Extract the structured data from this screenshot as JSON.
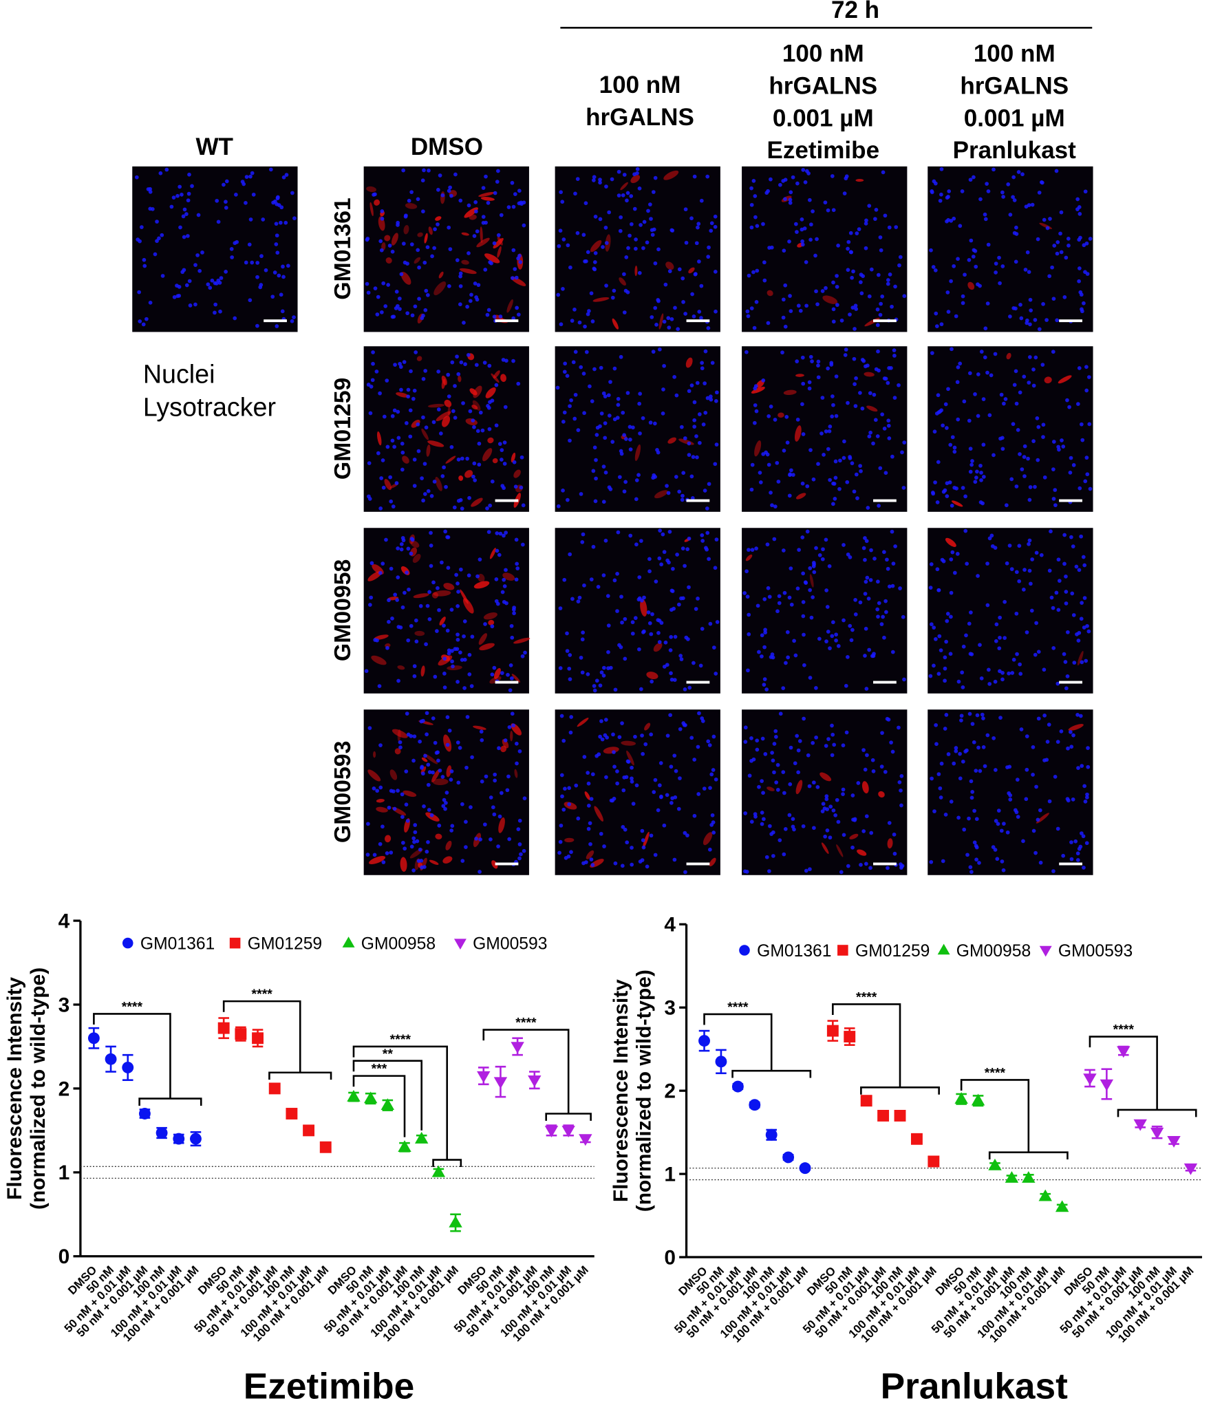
{
  "figure": {
    "time_label": "72 h",
    "column_headers": [
      [
        "WT"
      ],
      [
        "DMSO"
      ],
      [
        "100 nM",
        "hrGALNS"
      ],
      [
        "100 nM",
        "hrGALNS",
        "0.001 µM",
        "Ezetimibe"
      ],
      [
        "100 nM",
        "hrGALNS",
        "0.001 µM",
        "Pranlukast"
      ]
    ],
    "row_labels": [
      "GM01361",
      "GM01259",
      "GM00958",
      "GM00593"
    ],
    "legend": [
      {
        "label": "Nuclei",
        "color": "#1a1aff"
      },
      {
        "label": "Lysotracker",
        "color": "#e81010"
      }
    ]
  },
  "chart_data": [
    {
      "type": "dot",
      "title": "Ezetimibe",
      "ylabel": [
        "Fluorescence Intensity",
        "(normalized to wild-type)"
      ],
      "categories": [
        "DMSO",
        "50 nM",
        "50 nM + 0.01 µM",
        "50 nM + 0.001 µM",
        "100 nM",
        "100 nM + 0.01 µM",
        "100 nM + 0.001 µM",
        "DMSO",
        "50 nM",
        "50 nM + 0.01 µM",
        "50 nM + 0.001 µM",
        "100 nM",
        "100 nM + 0.01 µM",
        "100 nM + 0.001 µM",
        "DMSO",
        "50 nM",
        "50 nM + 0.01 µM",
        "50 nM + 0.001 µM",
        "100 nM",
        "100 nM + 0.01 µM",
        "100 nM + 0.001 µM",
        "DMSO",
        "50 nM",
        "50 nM + 0.01 µM",
        "50 nM + 0.001 µM",
        "100 nM",
        "100 nM + 0.01 µM",
        "100 nM + 0.001 µM"
      ],
      "ylim": [
        0,
        4
      ],
      "yticks": [
        0,
        1,
        2,
        3,
        4
      ],
      "reference_lines": [
        1.07,
        0.93
      ],
      "series": [
        {
          "name": "GM01361",
          "color": "#0a14f0",
          "marker": "circle",
          "values": [
            2.6,
            2.35,
            2.25,
            1.7,
            1.47,
            1.4,
            1.4,
            null,
            null,
            null,
            null,
            null,
            null,
            null,
            null,
            null,
            null,
            null,
            null,
            null,
            null,
            null,
            null,
            null,
            null,
            null,
            null,
            null
          ],
          "errors": [
            0.12,
            0.15,
            0.15,
            0.05,
            0.06,
            0.05,
            0.08,
            null,
            null,
            null,
            null,
            null,
            null,
            null,
            null,
            null,
            null,
            null,
            null,
            null,
            null,
            null,
            null,
            null,
            null,
            null,
            null,
            null
          ]
        },
        {
          "name": "GM01259",
          "color": "#f01414",
          "marker": "square",
          "values": [
            null,
            null,
            null,
            null,
            null,
            null,
            null,
            2.72,
            2.65,
            2.6,
            2.0,
            1.7,
            1.5,
            1.3,
            null,
            null,
            null,
            null,
            null,
            null,
            null,
            null,
            null,
            null,
            null,
            null,
            null,
            null
          ],
          "errors": [
            null,
            null,
            null,
            null,
            null,
            null,
            null,
            0.12,
            0.08,
            0.1,
            0.05,
            0.03,
            0.05,
            0.03,
            null,
            null,
            null,
            null,
            null,
            null,
            null,
            null,
            null,
            null,
            null,
            null,
            null,
            null
          ]
        },
        {
          "name": "GM00958",
          "color": "#10c010",
          "marker": "triangle",
          "values": [
            null,
            null,
            null,
            null,
            null,
            null,
            null,
            null,
            null,
            null,
            null,
            null,
            null,
            null,
            1.9,
            1.88,
            1.8,
            1.3,
            1.4,
            1.0,
            0.4,
            null,
            null,
            null,
            null,
            null,
            null,
            null
          ],
          "errors": [
            null,
            null,
            null,
            null,
            null,
            null,
            null,
            null,
            null,
            null,
            null,
            null,
            null,
            null,
            0.05,
            0.06,
            0.06,
            0.05,
            0.04,
            0.04,
            0.1,
            null,
            null,
            null,
            null,
            null,
            null,
            null
          ]
        },
        {
          "name": "GM00593",
          "color": "#b020e0",
          "marker": "down-triangle",
          "values": [
            null,
            null,
            null,
            null,
            null,
            null,
            null,
            null,
            null,
            null,
            null,
            null,
            null,
            null,
            null,
            null,
            null,
            null,
            null,
            null,
            null,
            2.15,
            2.08,
            2.5,
            2.1,
            1.5,
            1.5,
            1.4
          ],
          "errors": [
            null,
            null,
            null,
            null,
            null,
            null,
            null,
            null,
            null,
            null,
            null,
            null,
            null,
            null,
            null,
            null,
            null,
            null,
            null,
            null,
            null,
            0.1,
            0.18,
            0.1,
            0.1,
            0.06,
            0.06,
            0.04
          ]
        }
      ],
      "brackets": [
        {
          "from": 0,
          "span": [
            3,
            6
          ],
          "top": 2.89,
          "bottom": 1.88,
          "label": "****"
        },
        {
          "from": 7,
          "span": [
            10,
            13
          ],
          "top": 3.04,
          "bottom": 2.19,
          "label": "****"
        },
        {
          "from": 14,
          "span": [
            19,
            20
          ],
          "top": 2.5,
          "bottom": 1.15,
          "label": "****"
        },
        {
          "from": 14,
          "span": [
            18,
            18
          ],
          "top": 2.33,
          "bottom": 1.5,
          "label": "**"
        },
        {
          "from": 14,
          "span": [
            17,
            17
          ],
          "top": 2.15,
          "bottom": 1.42,
          "label": "***"
        },
        {
          "from": 21,
          "span": [
            25,
            27
          ],
          "top": 2.7,
          "bottom": 1.7,
          "label": "****"
        }
      ]
    },
    {
      "type": "dot",
      "title": "Pranlukast",
      "ylabel": [
        "Fluorescence Intensity",
        "(normalized to wild-type)"
      ],
      "categories": [
        "DMSO",
        "50 nM",
        "50 nM + 0.01 µM",
        "50 nM + 0.001 µM",
        "100 nM",
        "100 nM + 0.01 µM",
        "100 nM + 0.001 µM",
        "DMSO",
        "50 nM",
        "50 nM + 0.01 µM",
        "50 nM + 0.001 µM",
        "100 nM",
        "100 nM + 0.01 µM",
        "100 nM + 0.001 µM",
        "DMSO",
        "50 nM",
        "50 nM + 0.01 µM",
        "50 nM + 0.001 µM",
        "100 nM",
        "100 nM + 0.01 µM",
        "100 nM + 0.001 µM",
        "DMSO",
        "50 nM",
        "50 nM + 0.01 µM",
        "50 nM + 0.001 µM",
        "100 nM",
        "100 nM + 0.01 µM",
        "100 nM + 0.001 µM"
      ],
      "ylim": [
        0,
        4
      ],
      "yticks": [
        0,
        1,
        2,
        3,
        4
      ],
      "reference_lines": [
        1.07,
        0.93
      ],
      "series": [
        {
          "name": "GM01361",
          "color": "#0a14f0",
          "marker": "circle",
          "values": [
            2.6,
            2.35,
            2.05,
            1.83,
            1.47,
            1.2,
            1.07,
            null,
            null,
            null,
            null,
            null,
            null,
            null,
            null,
            null,
            null,
            null,
            null,
            null,
            null,
            null,
            null,
            null,
            null,
            null,
            null,
            null
          ],
          "errors": [
            0.12,
            0.14,
            0.03,
            0.03,
            0.06,
            0.03,
            0.02,
            null,
            null,
            null,
            null,
            null,
            null,
            null,
            null,
            null,
            null,
            null,
            null,
            null,
            null,
            null,
            null,
            null,
            null,
            null,
            null,
            null
          ]
        },
        {
          "name": "GM01259",
          "color": "#f01414",
          "marker": "square",
          "values": [
            null,
            null,
            null,
            null,
            null,
            null,
            null,
            2.72,
            2.65,
            1.88,
            1.7,
            1.7,
            1.42,
            1.15,
            null,
            null,
            null,
            null,
            null,
            null,
            null,
            null,
            null,
            null,
            null,
            null,
            null,
            null
          ],
          "errors": [
            null,
            null,
            null,
            null,
            null,
            null,
            null,
            0.12,
            0.1,
            0.03,
            0.03,
            0.03,
            0.03,
            0.04,
            null,
            null,
            null,
            null,
            null,
            null,
            null,
            null,
            null,
            null,
            null,
            null,
            null,
            null
          ]
        },
        {
          "name": "GM00958",
          "color": "#10c010",
          "marker": "triangle",
          "values": [
            null,
            null,
            null,
            null,
            null,
            null,
            null,
            null,
            null,
            null,
            null,
            null,
            null,
            null,
            1.9,
            1.88,
            1.1,
            0.95,
            0.95,
            0.73,
            0.6,
            null,
            null,
            null,
            null,
            null,
            null,
            null
          ],
          "errors": [
            null,
            null,
            null,
            null,
            null,
            null,
            null,
            null,
            null,
            null,
            null,
            null,
            null,
            null,
            0.06,
            0.06,
            0.03,
            0.03,
            0.04,
            0.03,
            0.03,
            null,
            null,
            null,
            null,
            null,
            null,
            null
          ]
        },
        {
          "name": "GM00593",
          "color": "#b020e0",
          "marker": "down-triangle",
          "values": [
            null,
            null,
            null,
            null,
            null,
            null,
            null,
            null,
            null,
            null,
            null,
            null,
            null,
            null,
            null,
            null,
            null,
            null,
            null,
            null,
            null,
            2.15,
            2.08,
            2.48,
            1.6,
            1.5,
            1.4,
            1.07
          ],
          "errors": [
            null,
            null,
            null,
            null,
            null,
            null,
            null,
            null,
            null,
            null,
            null,
            null,
            null,
            null,
            null,
            null,
            null,
            null,
            null,
            null,
            null,
            0.1,
            0.18,
            0.05,
            0.04,
            0.07,
            0.04,
            0.03
          ]
        }
      ],
      "brackets": [
        {
          "from": 0,
          "span": [
            2,
            6
          ],
          "top": 2.92,
          "bottom": 2.24,
          "label": "****"
        },
        {
          "from": 7,
          "span": [
            9,
            13
          ],
          "top": 3.04,
          "bottom": 2.04,
          "label": "****"
        },
        {
          "from": 14,
          "span": [
            16,
            20
          ],
          "top": 2.13,
          "bottom": 1.26,
          "label": "****"
        },
        {
          "from": 21,
          "span": [
            23,
            27
          ],
          "top": 2.65,
          "bottom": 1.77,
          "label": "****"
        }
      ]
    }
  ]
}
